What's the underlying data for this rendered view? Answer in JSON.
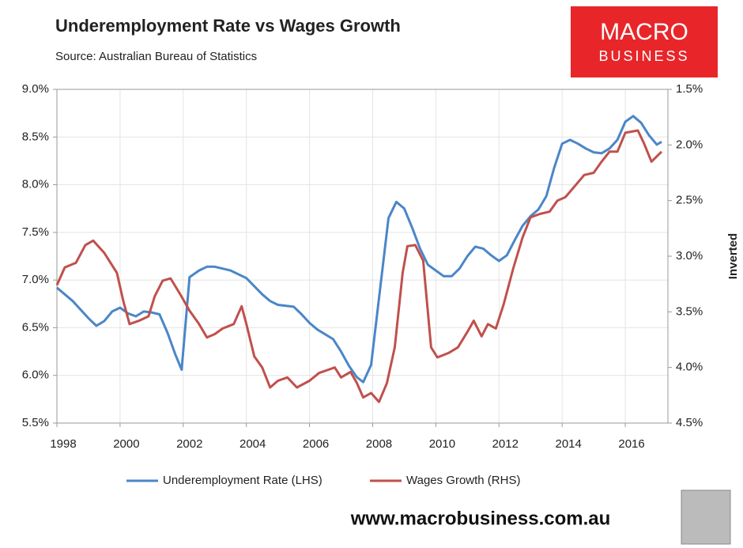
{
  "chart_data": {
    "type": "line",
    "title": "Underemployment Rate vs Wages Growth",
    "subtitle": "Source: Australian Bureau of Statistics",
    "logo": [
      "MACRO",
      "BUSINESS"
    ],
    "footer": "www.macrobusiness.com.au",
    "y2_label": "Inverted",
    "y2_inverted": true,
    "grid": true,
    "legend": "bottom",
    "xlim": [
      1998,
      2017.35
    ],
    "xticks": [
      1998,
      2000,
      2002,
      2004,
      2006,
      2008,
      2010,
      2012,
      2014,
      2016
    ],
    "ylim": [
      5.5,
      9.0
    ],
    "yticks": [
      {
        "value": 5.5,
        "label": "5.5%"
      },
      {
        "value": 6.0,
        "label": "6.0%"
      },
      {
        "value": 6.5,
        "label": "6.5%"
      },
      {
        "value": 7.0,
        "label": "7.0%"
      },
      {
        "value": 7.5,
        "label": "7.5%"
      },
      {
        "value": 8.0,
        "label": "8.0%"
      },
      {
        "value": 8.5,
        "label": "8.5%"
      },
      {
        "value": 9.0,
        "label": "9.0%"
      }
    ],
    "y2lim": [
      1.5,
      4.5
    ],
    "y2ticks": [
      {
        "value": 1.5,
        "label": "1.5%"
      },
      {
        "value": 2.0,
        "label": "2.0%"
      },
      {
        "value": 2.5,
        "label": "2.5%"
      },
      {
        "value": 3.0,
        "label": "3.0%"
      },
      {
        "value": 3.5,
        "label": "3.5%"
      },
      {
        "value": 4.0,
        "label": "4.0%"
      },
      {
        "value": 4.5,
        "label": "4.5%"
      }
    ],
    "series": [
      {
        "name": "Underemployment Rate (LHS)",
        "color": "#4a86c8",
        "axis": "y",
        "x": [
          1998.0,
          1998.5,
          1999.0,
          1999.25,
          1999.5,
          1999.75,
          2000.0,
          2000.25,
          2000.5,
          2000.75,
          2001.0,
          2001.25,
          2001.5,
          2001.75,
          2001.95,
          2002.2,
          2002.5,
          2002.75,
          2003.0,
          2003.5,
          2004.0,
          2004.5,
          2004.75,
          2005.0,
          2005.5,
          2005.75,
          2006.0,
          2006.25,
          2006.75,
          2007.0,
          2007.25,
          2007.5,
          2007.7,
          2007.95,
          2008.25,
          2008.5,
          2008.75,
          2009.0,
          2009.25,
          2009.5,
          2009.75,
          2010.0,
          2010.25,
          2010.5,
          2010.75,
          2011.0,
          2011.25,
          2011.5,
          2011.75,
          2012.0,
          2012.25,
          2012.5,
          2012.75,
          2013.0,
          2013.25,
          2013.5,
          2013.75,
          2014.0,
          2014.25,
          2014.5,
          2014.75,
          2015.0,
          2015.25,
          2015.5,
          2015.75,
          2016.0,
          2016.25,
          2016.5,
          2016.75,
          2017.0,
          2017.15
        ],
        "values": [
          6.92,
          6.78,
          6.6,
          6.52,
          6.57,
          6.67,
          6.71,
          6.65,
          6.62,
          6.67,
          6.66,
          6.64,
          6.45,
          6.22,
          6.06,
          7.03,
          7.1,
          7.14,
          7.14,
          7.1,
          7.02,
          6.85,
          6.78,
          6.74,
          6.72,
          6.64,
          6.55,
          6.48,
          6.38,
          6.25,
          6.1,
          5.98,
          5.93,
          6.11,
          6.95,
          7.65,
          7.82,
          7.75,
          7.55,
          7.33,
          7.16,
          7.1,
          7.04,
          7.04,
          7.12,
          7.25,
          7.35,
          7.33,
          7.26,
          7.2,
          7.26,
          7.42,
          7.57,
          7.67,
          7.74,
          7.88,
          8.18,
          8.43,
          8.47,
          8.43,
          8.38,
          8.34,
          8.33,
          8.38,
          8.47,
          8.66,
          8.72,
          8.65,
          8.52,
          8.42,
          8.45
        ]
      },
      {
        "name": "Wages Growth (RHS)",
        "color": "#c0504d",
        "axis": "y2",
        "x": [
          1998.0,
          1998.25,
          1998.6,
          1998.9,
          1999.15,
          1999.5,
          1999.9,
          2000.1,
          2000.3,
          2000.6,
          2000.9,
          2001.1,
          2001.35,
          2001.6,
          2001.9,
          2002.2,
          2002.5,
          2002.75,
          2003.0,
          2003.25,
          2003.6,
          2003.85,
          2004.0,
          2004.25,
          2004.5,
          2004.75,
          2005.0,
          2005.3,
          2005.6,
          2006.0,
          2006.3,
          2006.6,
          2006.8,
          2007.0,
          2007.3,
          2007.5,
          2007.7,
          2007.95,
          2008.2,
          2008.45,
          2008.7,
          2008.95,
          2009.1,
          2009.35,
          2009.6,
          2009.85,
          2010.05,
          2010.4,
          2010.7,
          2011.0,
          2011.2,
          2011.45,
          2011.65,
          2011.9,
          2012.15,
          2012.45,
          2012.75,
          2013.0,
          2013.3,
          2013.6,
          2013.85,
          2014.1,
          2014.4,
          2014.7,
          2015.0,
          2015.25,
          2015.5,
          2015.75,
          2016.0,
          2016.4,
          2016.6,
          2016.83,
          2017.15
        ],
        "values": [
          3.26,
          3.1,
          3.06,
          2.9,
          2.86,
          2.97,
          3.15,
          3.4,
          3.61,
          3.58,
          3.54,
          3.36,
          3.22,
          3.2,
          3.34,
          3.49,
          3.61,
          3.73,
          3.7,
          3.65,
          3.61,
          3.45,
          3.61,
          3.9,
          4.0,
          4.18,
          4.12,
          4.09,
          4.18,
          4.12,
          4.05,
          4.02,
          4.0,
          4.09,
          4.04,
          4.14,
          4.27,
          4.23,
          4.31,
          4.14,
          3.82,
          3.15,
          2.91,
          2.9,
          3.04,
          3.82,
          3.91,
          3.87,
          3.82,
          3.68,
          3.58,
          3.72,
          3.61,
          3.65,
          3.43,
          3.11,
          2.83,
          2.65,
          2.62,
          2.6,
          2.5,
          2.47,
          2.37,
          2.27,
          2.25,
          2.15,
          2.06,
          2.06,
          1.89,
          1.87,
          1.99,
          2.15,
          2.06
        ]
      }
    ]
  }
}
